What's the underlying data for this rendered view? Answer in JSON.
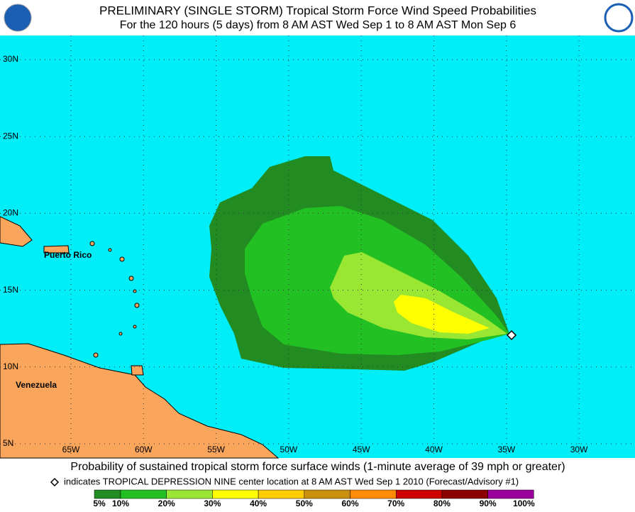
{
  "header": {
    "title": "PRELIMINARY (SINGLE STORM) Tropical Storm Force Wind Speed Probabilities",
    "subtitle": "For the 120 hours (5 days) from 8 AM AST Wed Sep 1 to 8 AM AST Mon Sep 6"
  },
  "map": {
    "lat_labels": [
      "30N",
      "25N",
      "20N",
      "15N",
      "10N",
      "5N"
    ],
    "lon_labels": [
      "65W",
      "60W",
      "55W",
      "50W",
      "45W",
      "40W",
      "35W",
      "30W"
    ],
    "places": [
      "Puerto Rico",
      "Venezuela"
    ]
  },
  "footer": {
    "caption": "Probability of sustained tropical storm force surface winds (1-minute average of 39 mph or greater)",
    "marker_note": "indicates TROPICAL DEPRESSION NINE center location at 8 AM AST Wed Sep 1 2010 (Forecast/Advisory #1)"
  },
  "colorbar": {
    "labels": [
      "5%",
      "10%",
      "20%",
      "30%",
      "40%",
      "50%",
      "60%",
      "70%",
      "80%",
      "90%",
      "100%"
    ],
    "colors": [
      "#228b22",
      "#22c022",
      "#99e633",
      "#ffff00",
      "#ffcc00",
      "#c8900c",
      "#ff8c00",
      "#cc0000",
      "#8b0000",
      "#990099"
    ]
  }
}
